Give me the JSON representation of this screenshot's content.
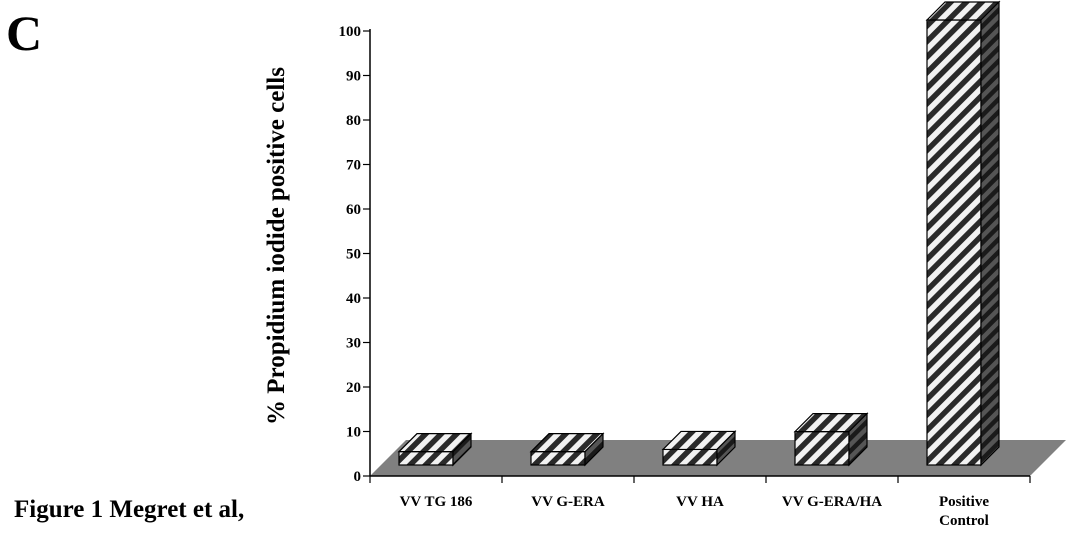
{
  "panel_label": "C",
  "caption": "Figure 1 Megret et al,",
  "colors": {
    "floor": "#808080",
    "bar_dark": "#2a2a2a",
    "bar_light": "#f2f2f2",
    "axis": "#000000"
  },
  "chart_data": {
    "type": "bar",
    "categories": [
      "VV TG 186",
      "VV G-ERA",
      "VV HA",
      "VV G-ERA/HA",
      "Positive Control"
    ],
    "category_lines": [
      [
        "VV TG 186"
      ],
      [
        "VV G-ERA"
      ],
      [
        "VV HA"
      ],
      [
        "VV G-ERA/HA"
      ],
      [
        "Positive",
        "Control"
      ]
    ],
    "values": [
      3,
      3,
      3.5,
      7.5,
      100
    ],
    "title": "",
    "xlabel": "",
    "ylabel": "% Propidium iodide positive cells",
    "ylim": [
      0,
      100
    ],
    "yticks": [
      0,
      10,
      20,
      30,
      40,
      50,
      60,
      70,
      80,
      90,
      100
    ],
    "grid": false,
    "style": "3d-hatched"
  }
}
